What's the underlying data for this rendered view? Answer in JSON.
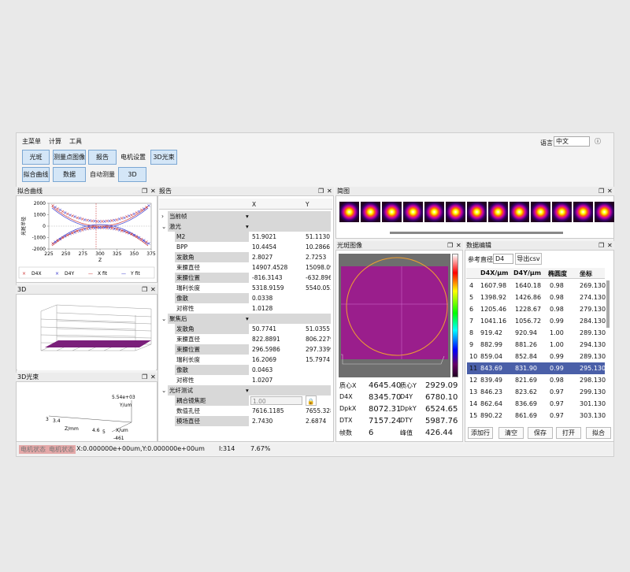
{
  "menu": [
    "主菜单",
    "计算",
    "工具"
  ],
  "toolbar": {
    "row1": [
      "光斑",
      "测量点图像",
      "报告",
      "电机设置",
      "3D光束"
    ],
    "row2": [
      "拟合曲线",
      "数据",
      "自动测量",
      "3D"
    ],
    "language_label": "语言",
    "language": "中文"
  },
  "panels": {
    "fit": "拟合曲线",
    "report": "报告",
    "thumbs": "简图",
    "view3d": "3D",
    "beam3d": "3D光束",
    "spot": "光斑图像",
    "data": "数据编辑"
  },
  "fit_chart": {
    "type": "line",
    "ylabel": "光斑半径",
    "xlabel": "Z",
    "xlim": [
      225,
      375
    ],
    "ylim": [
      -2000,
      2000
    ],
    "xticks": [
      225,
      250,
      275,
      300,
      325,
      350,
      375
    ],
    "yticks": [
      2000,
      1000,
      0,
      -1000,
      -2000
    ],
    "legend": [
      "D4X",
      "D4Y",
      "X fit",
      "Y fit"
    ]
  },
  "beam3d": {
    "labels": [
      "5.54e+03",
      "Y/um",
      "3",
      "3.4",
      "4.6",
      "5",
      "-461",
      "Z/mm",
      "X/um"
    ]
  },
  "report": {
    "columns": [
      "X",
      "Y"
    ],
    "sections": [
      {
        "label": "当前帧",
        "rows": []
      },
      {
        "label": "激光",
        "rows": [
          {
            "label": "M2",
            "x": "51.9021",
            "y": "51.1130"
          },
          {
            "label": "BPP",
            "x": "10.4454",
            "y": "10.2866"
          },
          {
            "label": "发散角",
            "x": "2.8027",
            "y": "2.7253"
          },
          {
            "label": "束腰直径",
            "x": "14907.4528",
            "y": "15098.09"
          },
          {
            "label": "束腰位置",
            "x": "-816.3143",
            "y": "-632.896"
          },
          {
            "label": "瑞利长度",
            "x": "5318.9159",
            "y": "5540.053"
          },
          {
            "label": "像散",
            "x": "0.0338"
          },
          {
            "label": "对称性",
            "x": "1.0128"
          }
        ]
      },
      {
        "label": "聚焦后",
        "rows": [
          {
            "label": "发散角",
            "x": "50.7741",
            "y": "51.0355"
          },
          {
            "label": "束腰直径",
            "x": "822.8891",
            "y": "806.2279"
          },
          {
            "label": "束腰位置",
            "x": "296.5986",
            "y": "297.3399"
          },
          {
            "label": "瑞利长度",
            "x": "16.2069",
            "y": "15.7974"
          },
          {
            "label": "像散",
            "x": "0.0463"
          },
          {
            "label": "对称性",
            "x": "1.0207"
          }
        ]
      },
      {
        "label": "光纤测试",
        "rows": [
          {
            "label": "耦合镜焦距",
            "input": "1.00"
          },
          {
            "label": "数值孔径",
            "x": "7616.1185",
            "y": "7655.328"
          },
          {
            "label": "模场直径",
            "x": "2.7430",
            "y": "2.6874"
          }
        ]
      }
    ]
  },
  "spot_stats": [
    [
      "质心X",
      "4645.40",
      "质心Y",
      "2929.09"
    ],
    [
      "D4X",
      "8345.70",
      "D4Y",
      "6780.10"
    ],
    [
      "DpkX",
      "8072.31",
      "DpkY",
      "6524.65"
    ],
    [
      "DTX",
      "7157.24",
      "DTY",
      "5987.76"
    ],
    [
      "帧数",
      "6",
      "峰值",
      "426.44"
    ]
  ],
  "data_edit": {
    "ref_label": "参考直径",
    "ref": "D4",
    "export": "导出csv",
    "headers": [
      "D4X/μm",
      "D4Y/μm",
      "椭圆度",
      "坐标"
    ],
    "rows": [
      [
        "4",
        "1607.98",
        "1640.18",
        "0.98",
        "269.130"
      ],
      [
        "5",
        "1398.92",
        "1426.86",
        "0.98",
        "274.130"
      ],
      [
        "6",
        "1205.46",
        "1228.67",
        "0.98",
        "279.130"
      ],
      [
        "7",
        "1041.16",
        "1056.72",
        "0.99",
        "284.130"
      ],
      [
        "8",
        "919.42",
        "920.94",
        "1.00",
        "289.130"
      ],
      [
        "9",
        "882.99",
        "881.26",
        "1.00",
        "294.130"
      ],
      [
        "10",
        "859.04",
        "852.84",
        "0.99",
        "289.130"
      ],
      [
        "11",
        "843.69",
        "831.90",
        "0.99",
        "295.130"
      ],
      [
        "12",
        "839.49",
        "821.69",
        "0.98",
        "298.130"
      ],
      [
        "13",
        "846.23",
        "823.62",
        "0.97",
        "299.130"
      ],
      [
        "14",
        "862.64",
        "836.69",
        "0.97",
        "301.130"
      ],
      [
        "15",
        "890.22",
        "861.69",
        "0.97",
        "303.130"
      ]
    ],
    "selected": 7,
    "buttons": [
      "添加行",
      "清空",
      "保存",
      "打开",
      "拟合"
    ]
  },
  "status": {
    "motor1": "电机状态",
    "motor2": "电机状态",
    "position": "X:0.000000e+00um,Y:0.000000e+00um",
    "index": "I:314",
    "percent": "7.67%"
  }
}
